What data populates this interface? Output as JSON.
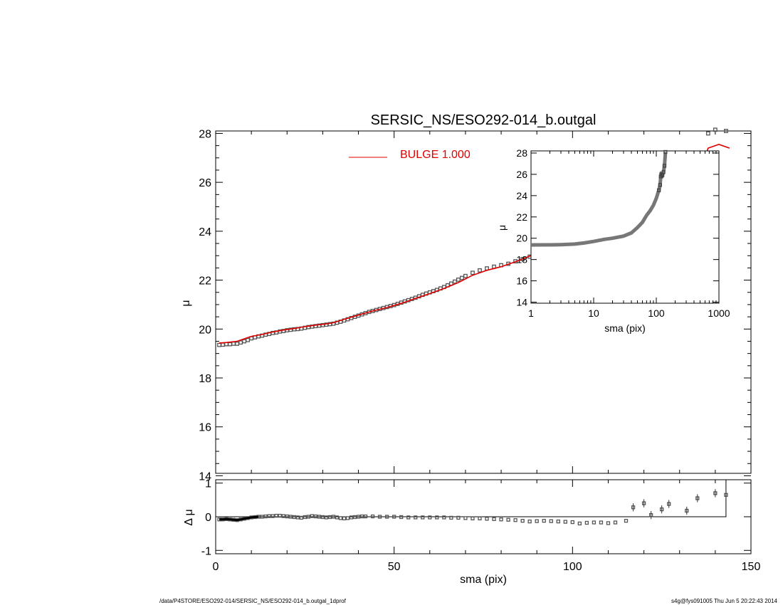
{
  "title": "SERSIC_NS/ESO292-014_b.outgal",
  "footer_left": "/data/P4STORE/ESO292-014/SERSIC_NS/ESO292-014_b.outgal_1dprof",
  "footer_right": "s4g@fys091005  Thu Jun  5 20:22:43 2014",
  "chart_data": [
    {
      "id": "main",
      "type": "scatter",
      "xlabel": "",
      "ylabel": "μ",
      "xlim": [
        0,
        150
      ],
      "ylim": [
        28.1,
        14.1
      ],
      "y_inverted": true,
      "yticks": [
        14,
        16,
        18,
        20,
        22,
        24,
        26,
        28
      ],
      "legend": {
        "label": "BULGE  1.000",
        "color": "#e00000",
        "placement": "top-center"
      },
      "series": [
        {
          "kind": "points",
          "color": "#555555",
          "points": [
            [
              1,
              19.35
            ],
            [
              2,
              19.36
            ],
            [
              3,
              19.38
            ],
            [
              4,
              19.38
            ],
            [
              5,
              19.4
            ],
            [
              6,
              19.4
            ],
            [
              7,
              19.45
            ],
            [
              8,
              19.5
            ],
            [
              9,
              19.55
            ],
            [
              10,
              19.62
            ],
            [
              11,
              19.66
            ],
            [
              12,
              19.7
            ],
            [
              13,
              19.73
            ],
            [
              14,
              19.77
            ],
            [
              15,
              19.8
            ],
            [
              16,
              19.84
            ],
            [
              17,
              19.86
            ],
            [
              18,
              19.9
            ],
            [
              19,
              19.92
            ],
            [
              20,
              19.95
            ],
            [
              21,
              19.97
            ],
            [
              22,
              19.99
            ],
            [
              23,
              20.0
            ],
            [
              24,
              20.02
            ],
            [
              25,
              20.05
            ],
            [
              26,
              20.08
            ],
            [
              27,
              20.1
            ],
            [
              28,
              20.12
            ],
            [
              29,
              20.14
            ],
            [
              30,
              20.16
            ],
            [
              31,
              20.18
            ],
            [
              32,
              20.2
            ],
            [
              33,
              20.22
            ],
            [
              34,
              20.26
            ],
            [
              35,
              20.3
            ],
            [
              36,
              20.35
            ],
            [
              37,
              20.4
            ],
            [
              38,
              20.45
            ],
            [
              39,
              20.5
            ],
            [
              40,
              20.55
            ],
            [
              41,
              20.6
            ],
            [
              42,
              20.65
            ],
            [
              43,
              20.7
            ],
            [
              44,
              20.74
            ],
            [
              45,
              20.78
            ],
            [
              46,
              20.82
            ],
            [
              47,
              20.86
            ],
            [
              48,
              20.9
            ],
            [
              49,
              20.94
            ],
            [
              50,
              20.98
            ],
            [
              51,
              21.03
            ],
            [
              52,
              21.08
            ],
            [
              53,
              21.13
            ],
            [
              54,
              21.18
            ],
            [
              55,
              21.23
            ],
            [
              56,
              21.28
            ],
            [
              57,
              21.34
            ],
            [
              58,
              21.4
            ],
            [
              59,
              21.45
            ],
            [
              60,
              21.5
            ],
            [
              61,
              21.55
            ],
            [
              62,
              21.6
            ],
            [
              63,
              21.66
            ],
            [
              64,
              21.72
            ],
            [
              65,
              21.79
            ],
            [
              66,
              21.86
            ],
            [
              67,
              21.94
            ],
            [
              68,
              22.02
            ],
            [
              69,
              22.09
            ],
            [
              70,
              22.17
            ],
            [
              72,
              22.3
            ],
            [
              74,
              22.4
            ],
            [
              76,
              22.48
            ],
            [
              78,
              22.55
            ],
            [
              80,
              22.61
            ],
            [
              82,
              22.67
            ],
            [
              84,
              22.77
            ],
            [
              86,
              22.86
            ],
            [
              88,
              22.96
            ],
            [
              90,
              23.08
            ],
            [
              92,
              23.2
            ],
            [
              94,
              23.33
            ],
            [
              96,
              23.45
            ],
            [
              98,
              23.6
            ],
            [
              100,
              23.78
            ],
            [
              102,
              23.98
            ],
            [
              104,
              24.15
            ],
            [
              106,
              24.28
            ],
            [
              108,
              24.38
            ],
            [
              110,
              24.47
            ],
            [
              113,
              24.55
            ],
            [
              115,
              24.98
            ],
            [
              117,
              25.82
            ],
            [
              120,
              26.0
            ],
            [
              122,
              25.75
            ],
            [
              125,
              25.82
            ],
            [
              127,
              25.98
            ],
            [
              130,
              26.15
            ],
            [
              132,
              26.25
            ],
            [
              135,
              26.8
            ],
            [
              138,
              28.0
            ],
            [
              140,
              28.15
            ],
            [
              143,
              28.1
            ]
          ]
        },
        {
          "kind": "line",
          "name": "BULGE  1.000",
          "color": "#e00000",
          "points": [
            [
              1,
              19.43
            ],
            [
              3,
              19.45
            ],
            [
              6,
              19.5
            ],
            [
              8,
              19.6
            ],
            [
              10,
              19.7
            ],
            [
              13,
              19.78
            ],
            [
              16,
              19.88
            ],
            [
              19,
              19.96
            ],
            [
              22,
              20.02
            ],
            [
              25,
              20.1
            ],
            [
              28,
              20.16
            ],
            [
              31,
              20.21
            ],
            [
              33,
              20.26
            ],
            [
              36,
              20.4
            ],
            [
              40,
              20.57
            ],
            [
              44,
              20.74
            ],
            [
              48,
              20.88
            ],
            [
              52,
              21.05
            ],
            [
              56,
              21.25
            ],
            [
              60,
              21.45
            ],
            [
              64,
              21.66
            ],
            [
              68,
              21.9
            ],
            [
              72,
              22.2
            ],
            [
              76,
              22.4
            ],
            [
              80,
              22.55
            ],
            [
              84,
              22.75
            ],
            [
              88,
              22.98
            ],
            [
              92,
              23.22
            ],
            [
              96,
              23.48
            ],
            [
              100,
              23.75
            ],
            [
              104,
              24.18
            ],
            [
              106,
              24.4
            ],
            [
              108,
              24.5
            ],
            [
              110,
              24.55
            ],
            [
              113,
              24.73
            ],
            [
              115,
              25.05
            ],
            [
              117,
              25.52
            ],
            [
              120,
              25.6
            ],
            [
              125,
              25.8
            ],
            [
              127,
              25.82
            ],
            [
              130,
              26.2
            ],
            [
              132,
              26.0
            ],
            [
              133,
              26.1
            ],
            [
              135,
              26.2
            ],
            [
              138,
              27.4
            ],
            [
              141,
              27.55
            ],
            [
              144,
              27.4
            ]
          ]
        }
      ]
    },
    {
      "id": "inset",
      "type": "scatter",
      "xlabel": "sma (pix)",
      "ylabel": "μ",
      "xscale": "log",
      "xlim": [
        1,
        1000
      ],
      "xticks": [
        1,
        10,
        100,
        1000
      ],
      "ylim": [
        28.2,
        13.9
      ],
      "y_inverted": true,
      "yticks": [
        14,
        16,
        18,
        20,
        22,
        24,
        26,
        28
      ],
      "series": [
        {
          "kind": "points",
          "color": "#555555",
          "points": [
            [
              1,
              19.37
            ],
            [
              2,
              19.38
            ],
            [
              3,
              19.4
            ],
            [
              5,
              19.45
            ],
            [
              7,
              19.55
            ],
            [
              10,
              19.7
            ],
            [
              15,
              19.9
            ],
            [
              20,
              20.0
            ],
            [
              30,
              20.2
            ],
            [
              40,
              20.5
            ],
            [
              50,
              21.0
            ],
            [
              60,
              21.5
            ],
            [
              70,
              22.15
            ],
            [
              80,
              22.6
            ],
            [
              90,
              23.1
            ],
            [
              100,
              23.75
            ],
            [
              105,
              24.15
            ],
            [
              110,
              24.5
            ],
            [
              115,
              25.0
            ],
            [
              118,
              25.8
            ],
            [
              120,
              26.0
            ],
            [
              125,
              25.9
            ],
            [
              130,
              26.2
            ],
            [
              135,
              26.8
            ],
            [
              140,
              28.1
            ]
          ]
        }
      ]
    },
    {
      "id": "residual",
      "type": "scatter",
      "xlabel": "sma (pix)",
      "ylabel": "Δ μ",
      "xlim": [
        0,
        150
      ],
      "xticks": [
        0,
        50,
        100,
        150
      ],
      "ylim": [
        -1.1,
        1.1
      ],
      "yticks": [
        1,
        0,
        -1
      ],
      "series": [
        {
          "kind": "points",
          "color": "#555555",
          "points": [
            [
              1,
              -0.08
            ],
            [
              2,
              -0.08
            ],
            [
              3,
              -0.07
            ],
            [
              4,
              -0.08
            ],
            [
              5,
              -0.09
            ],
            [
              6,
              -0.1
            ],
            [
              7,
              -0.08
            ],
            [
              8,
              -0.06
            ],
            [
              9,
              -0.04
            ],
            [
              10,
              -0.02
            ],
            [
              11,
              -0.01
            ],
            [
              12,
              0.0
            ],
            [
              13,
              0.0
            ],
            [
              14,
              0.01
            ],
            [
              15,
              0.02
            ],
            [
              16,
              0.02
            ],
            [
              17,
              0.03
            ],
            [
              18,
              0.03
            ],
            [
              19,
              0.02
            ],
            [
              20,
              0.01
            ],
            [
              21,
              0.0
            ],
            [
              22,
              -0.01
            ],
            [
              23,
              -0.02
            ],
            [
              24,
              -0.03
            ],
            [
              25,
              -0.01
            ],
            [
              26,
              0.0
            ],
            [
              27,
              0.02
            ],
            [
              28,
              0.01
            ],
            [
              29,
              0.0
            ],
            [
              30,
              -0.01
            ],
            [
              31,
              -0.02
            ],
            [
              32,
              -0.01
            ],
            [
              33,
              0.0
            ],
            [
              34,
              -0.02
            ],
            [
              35,
              -0.04
            ],
            [
              36,
              -0.05
            ],
            [
              37,
              -0.04
            ],
            [
              38,
              -0.02
            ],
            [
              39,
              -0.01
            ],
            [
              40,
              0.0
            ],
            [
              41,
              0.01
            ],
            [
              42,
              0.01
            ],
            [
              44,
              0.01
            ],
            [
              46,
              0.0
            ],
            [
              48,
              0.0
            ],
            [
              50,
              0.0
            ],
            [
              52,
              -0.01
            ],
            [
              54,
              -0.02
            ],
            [
              56,
              -0.02
            ],
            [
              58,
              -0.02
            ],
            [
              60,
              -0.02
            ],
            [
              62,
              -0.02
            ],
            [
              64,
              -0.02
            ],
            [
              66,
              -0.03
            ],
            [
              68,
              -0.03
            ],
            [
              70,
              -0.04
            ],
            [
              72,
              -0.05
            ],
            [
              74,
              -0.05
            ],
            [
              76,
              -0.06
            ],
            [
              78,
              -0.07
            ],
            [
              80,
              -0.08
            ],
            [
              82,
              -0.09
            ],
            [
              84,
              -0.1
            ],
            [
              86,
              -0.12
            ],
            [
              88,
              -0.14
            ],
            [
              90,
              -0.13
            ],
            [
              92,
              -0.12
            ],
            [
              94,
              -0.13
            ],
            [
              96,
              -0.14
            ],
            [
              98,
              -0.15
            ],
            [
              100,
              -0.16
            ],
            [
              102,
              -0.2
            ],
            [
              104,
              -0.18
            ],
            [
              106,
              -0.17
            ],
            [
              108,
              -0.17
            ],
            [
              110,
              -0.19
            ],
            [
              112,
              -0.17
            ],
            [
              115,
              -0.12
            ],
            [
              117,
              0.28
            ],
            [
              120,
              0.4
            ],
            [
              122,
              0.05
            ],
            [
              125,
              0.22
            ],
            [
              127,
              0.38
            ],
            [
              132,
              0.18
            ],
            [
              135,
              0.55
            ],
            [
              140,
              0.7
            ],
            [
              143,
              0.65
            ]
          ]
        }
      ]
    }
  ]
}
